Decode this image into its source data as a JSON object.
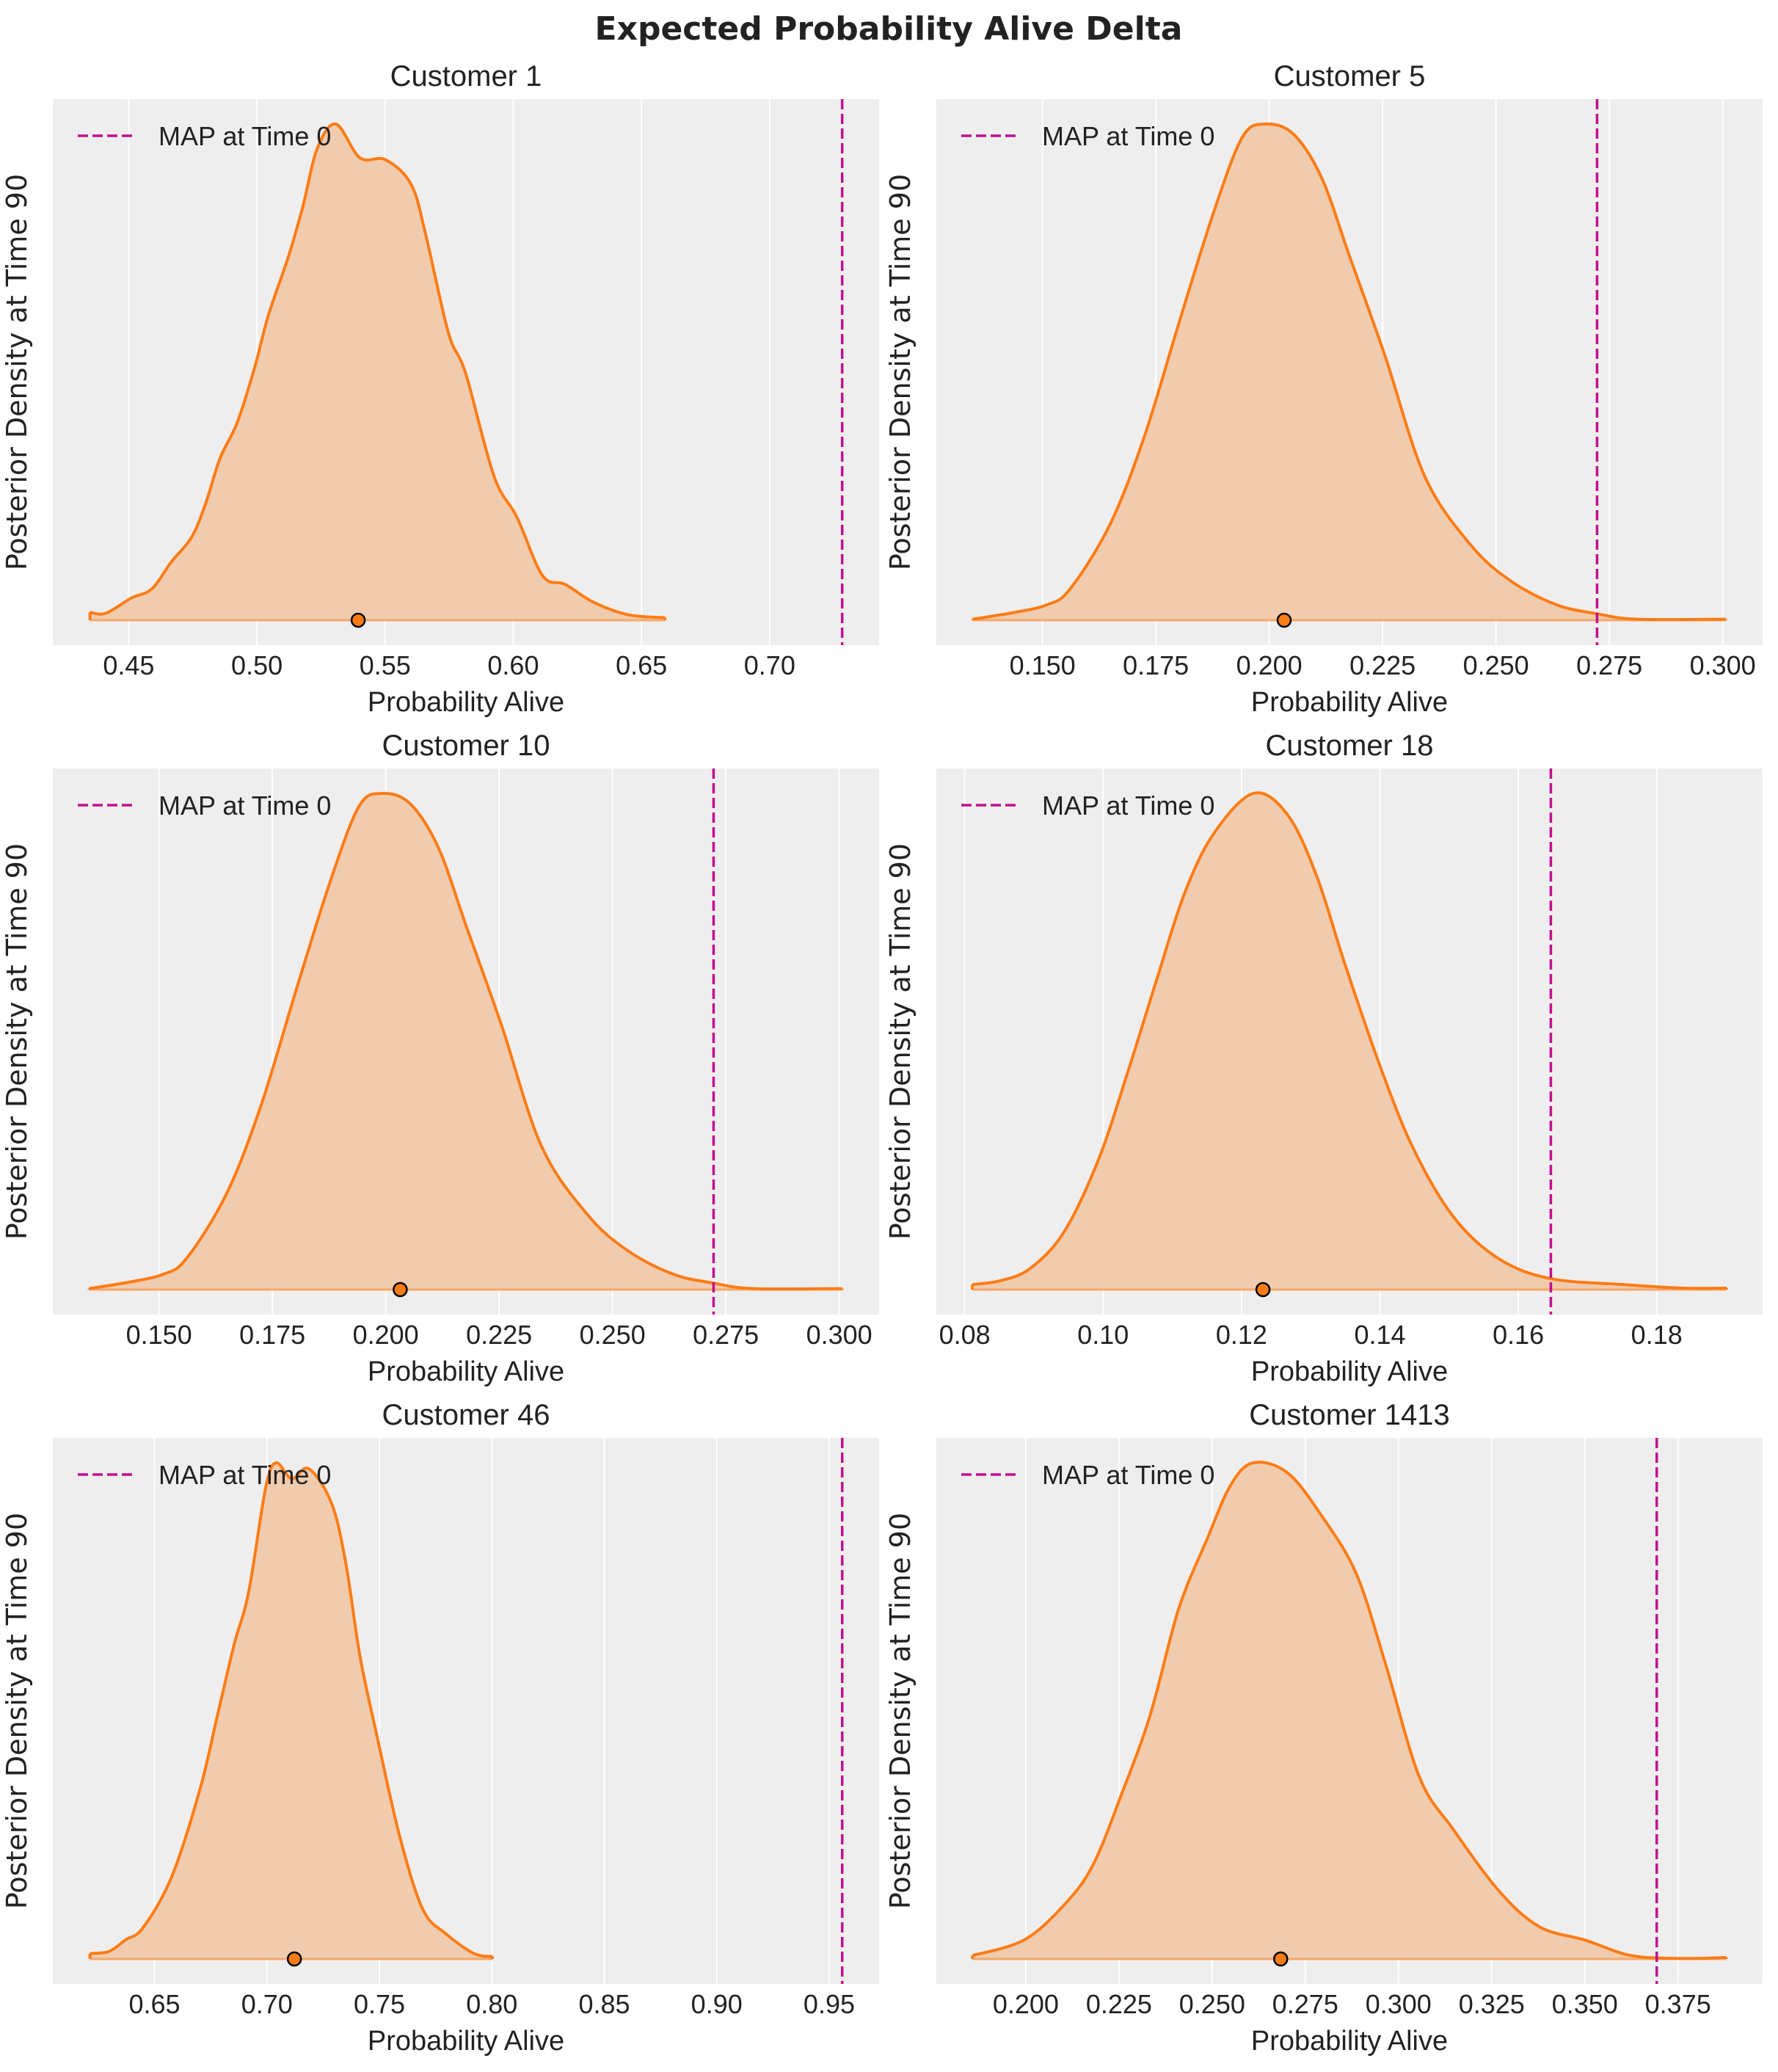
{
  "title": "Expected Probability Alive Delta",
  "colors": {
    "background": "#eeeeee",
    "grid": "#ffffff",
    "density_line": "#fb7c16",
    "density_fill": "#f0cbad",
    "map_line": "#c20f8f",
    "point_marker": "#fb7c16"
  },
  "chart_data": [
    {
      "type": "area",
      "title": "Customer 1",
      "xlabel": "Probability Alive",
      "ylabel": "Posterior Density at Time 90",
      "legend": "MAP at Time 0",
      "legend_position": "top-left",
      "grid": true,
      "xlim": [
        0.4204,
        0.7427
      ],
      "xticks": [
        "0.45",
        "0.50",
        "0.55",
        "0.60",
        "0.65",
        "0.70"
      ],
      "map_value": 0.7283,
      "point_estimate": 0.5395,
      "curve": {
        "x": [
          0.4349,
          0.4411,
          0.4511,
          0.459,
          0.4667,
          0.4745,
          0.48,
          0.4856,
          0.4923,
          0.499,
          0.5045,
          0.5123,
          0.5179,
          0.5235,
          0.5308,
          0.5402,
          0.5502,
          0.5602,
          0.5658,
          0.5747,
          0.5814,
          0.5925,
          0.6014,
          0.6114,
          0.6203,
          0.6314,
          0.6448,
          0.6592
        ],
        "density": [
          0.016,
          0.014,
          0.045,
          0.063,
          0.118,
          0.167,
          0.235,
          0.326,
          0.398,
          0.507,
          0.615,
          0.733,
          0.833,
          0.95,
          1.0,
          0.932,
          0.928,
          0.878,
          0.778,
          0.579,
          0.498,
          0.29,
          0.208,
          0.09,
          0.072,
          0.036,
          0.011,
          0.005
        ]
      }
    },
    {
      "type": "area",
      "title": "Customer 5",
      "xlabel": "Probability Alive",
      "ylabel": "Posterior Density at Time 90",
      "legend": "MAP at Time 0",
      "legend_position": "top-left",
      "grid": true,
      "xlim": [
        0.1266,
        0.3088
      ],
      "xticks": [
        "0.150",
        "0.175",
        "0.200",
        "0.225",
        "0.250",
        "0.275",
        "0.300"
      ],
      "map_value": 0.2723,
      "point_estimate": 0.2033,
      "curve": {
        "x": [
          0.1346,
          0.1434,
          0.151,
          0.1561,
          0.1649,
          0.1725,
          0.1801,
          0.1876,
          0.194,
          0.199,
          0.2053,
          0.2116,
          0.2179,
          0.2255,
          0.2343,
          0.2444,
          0.2533,
          0.2634,
          0.2723,
          0.2811,
          0.3007
        ],
        "density": [
          0.002,
          0.015,
          0.031,
          0.063,
          0.193,
          0.371,
          0.599,
          0.818,
          0.972,
          1.0,
          0.98,
          0.891,
          0.729,
          0.534,
          0.29,
          0.152,
          0.079,
          0.031,
          0.013,
          0.002,
          0.002
        ]
      }
    },
    {
      "type": "area",
      "title": "Customer 10",
      "xlabel": "Probability Alive",
      "ylabel": "Posterior Density at Time 90",
      "legend": "MAP at Time 0",
      "legend_position": "top-left",
      "grid": true,
      "xlim": [
        0.1266,
        0.3088
      ],
      "xticks": [
        "0.150",
        "0.175",
        "0.200",
        "0.225",
        "0.250",
        "0.275",
        "0.300"
      ],
      "map_value": 0.2723,
      "point_estimate": 0.2032,
      "curve": {
        "x": [
          0.1346,
          0.1434,
          0.151,
          0.1561,
          0.1649,
          0.1725,
          0.1801,
          0.1876,
          0.194,
          0.199,
          0.2053,
          0.2116,
          0.2179,
          0.2255,
          0.2343,
          0.2444,
          0.2533,
          0.2634,
          0.2723,
          0.2811,
          0.3007
        ],
        "density": [
          0.002,
          0.015,
          0.031,
          0.063,
          0.193,
          0.371,
          0.599,
          0.818,
          0.972,
          1.0,
          0.98,
          0.891,
          0.729,
          0.534,
          0.29,
          0.152,
          0.079,
          0.031,
          0.013,
          0.002,
          0.002
        ]
      }
    },
    {
      "type": "area",
      "title": "Customer 18",
      "xlabel": "Probability Alive",
      "ylabel": "Posterior Density at Time 90",
      "legend": "MAP at Time 0",
      "legend_position": "top-left",
      "grid": true,
      "xlim": [
        0.0759,
        0.1953
      ],
      "xticks": [
        "0.08",
        "0.10",
        "0.12",
        "0.14",
        "0.16",
        "0.18"
      ],
      "map_value": 0.1647,
      "point_estimate": 0.1231,
      "curve": {
        "x": [
          0.0811,
          0.0852,
          0.0894,
          0.0943,
          0.0993,
          0.1034,
          0.1076,
          0.1117,
          0.1159,
          0.1217,
          0.1266,
          0.1308,
          0.1349,
          0.1399,
          0.1448,
          0.1506,
          0.1572,
          0.1647,
          0.1754,
          0.1837,
          0.1901
        ],
        "density": [
          0.01,
          0.018,
          0.042,
          0.115,
          0.261,
          0.431,
          0.618,
          0.796,
          0.917,
          1.0,
          0.958,
          0.836,
          0.658,
          0.455,
          0.285,
          0.147,
          0.062,
          0.022,
          0.01,
          0.003,
          0.003
        ]
      }
    },
    {
      "type": "area",
      "title": "Customer 46",
      "xlabel": "Probability Alive",
      "ylabel": "Posterior Density at Time 90",
      "legend": "MAP at Time 0",
      "legend_position": "top-left",
      "grid": true,
      "xlim": [
        0.6048,
        0.9722
      ],
      "xticks": [
        "0.65",
        "0.70",
        "0.75",
        "0.80",
        "0.85",
        "0.90",
        "0.95"
      ],
      "map_value": 0.9558,
      "point_estimate": 0.7122,
      "curve": {
        "x": [
          0.6213,
          0.6297,
          0.6373,
          0.6449,
          0.6576,
          0.6703,
          0.6779,
          0.6855,
          0.6919,
          0.6995,
          0.7041,
          0.711,
          0.7186,
          0.7287,
          0.7351,
          0.7414,
          0.749,
          0.7591,
          0.7693,
          0.7795,
          0.7921,
          0.8003
        ],
        "density": [
          0.011,
          0.015,
          0.039,
          0.063,
          0.165,
          0.343,
          0.489,
          0.635,
          0.74,
          0.951,
          1.0,
          0.968,
          0.988,
          0.919,
          0.797,
          0.61,
          0.448,
          0.246,
          0.1,
          0.051,
          0.011,
          0.005
        ]
      }
    },
    {
      "type": "area",
      "title": "Customer 1413",
      "xlabel": "Probability Alive",
      "ylabel": "Posterior Density at Time 90",
      "legend": "MAP at Time 0",
      "legend_position": "top-left",
      "grid": true,
      "xlim": [
        0.176,
        0.3977
      ],
      "xticks": [
        "0.200",
        "0.225",
        "0.250",
        "0.275",
        "0.300",
        "0.325",
        "0.350",
        "0.375"
      ],
      "map_value": 0.3693,
      "point_estimate": 0.2684,
      "curve": {
        "x": [
          0.1857,
          0.1995,
          0.2103,
          0.218,
          0.2257,
          0.2334,
          0.241,
          0.2487,
          0.2549,
          0.261,
          0.2702,
          0.2795,
          0.2887,
          0.2964,
          0.3056,
          0.3148,
          0.3271,
          0.3378,
          0.3501,
          0.3624,
          0.3762,
          0.388
        ],
        "density": [
          0.007,
          0.038,
          0.109,
          0.189,
          0.332,
          0.492,
          0.705,
          0.847,
          0.954,
          1.0,
          0.98,
          0.892,
          0.776,
          0.598,
          0.367,
          0.26,
          0.136,
          0.065,
          0.038,
          0.007,
          0.001,
          0.003
        ]
      }
    }
  ]
}
